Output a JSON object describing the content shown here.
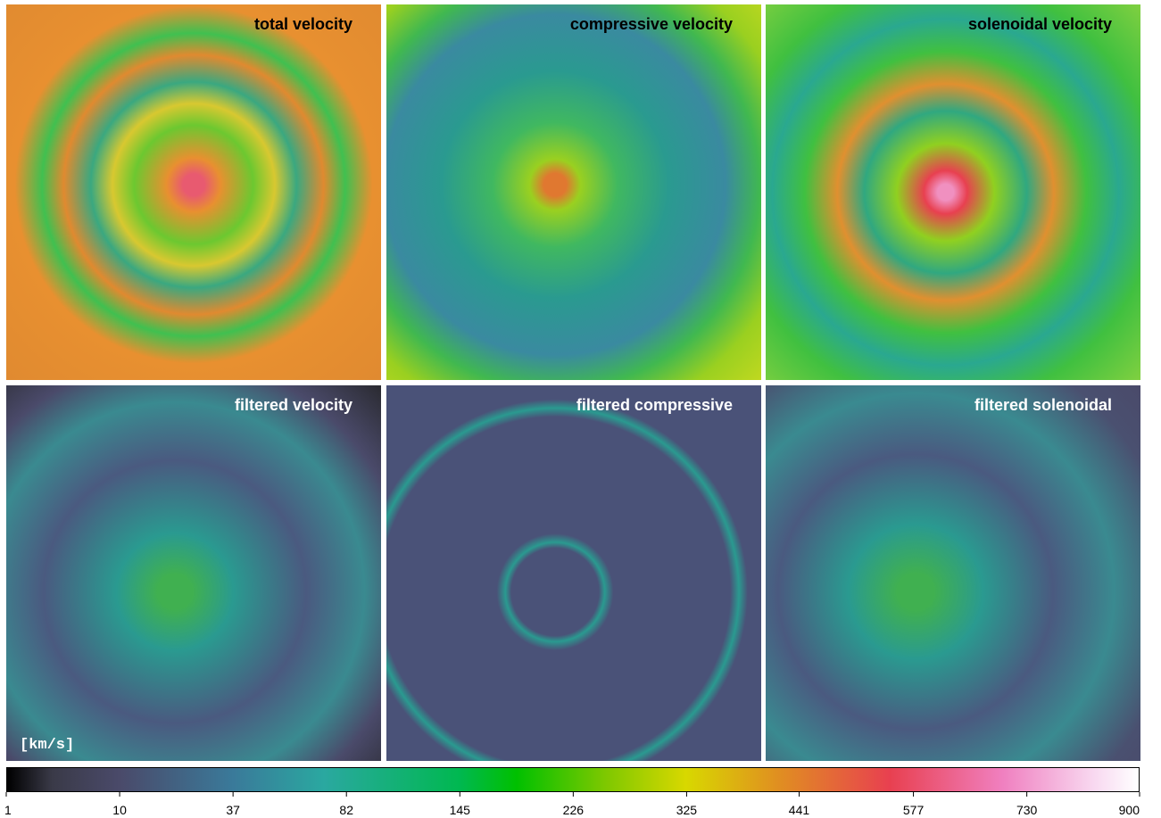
{
  "panels": [
    {
      "title": "total velocity"
    },
    {
      "title": "compressive velocity"
    },
    {
      "title": "solenoidal velocity"
    },
    {
      "title": "filtered velocity"
    },
    {
      "title": "filtered compressive"
    },
    {
      "title": "filtered solenoidal"
    }
  ],
  "unit": "[km/s]",
  "colorbar": {
    "range": [
      1,
      900
    ],
    "scale": "sqrt",
    "ticks": [
      1,
      10,
      37,
      82,
      145,
      226,
      325,
      441,
      577,
      730,
      900
    ]
  }
}
